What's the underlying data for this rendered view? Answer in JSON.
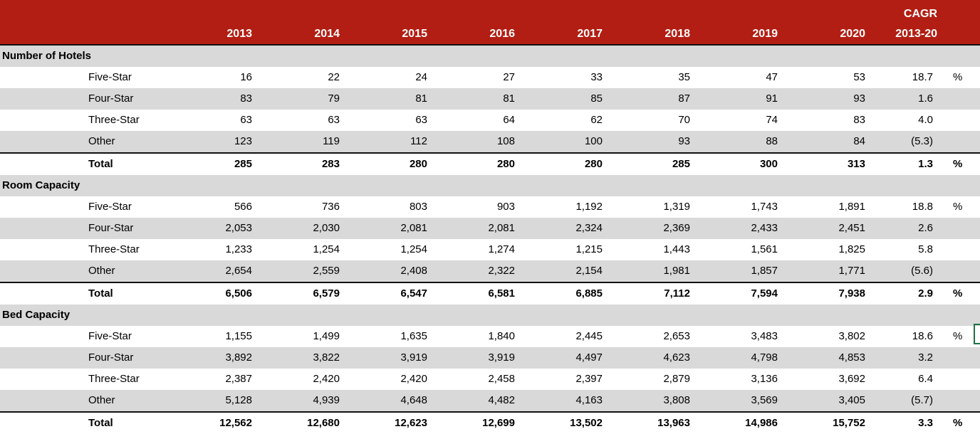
{
  "header": {
    "cagr_label": "CAGR",
    "cagr_sublabel": "2013-20",
    "years": [
      "2013",
      "2014",
      "2015",
      "2016",
      "2017",
      "2018",
      "2019",
      "2020"
    ]
  },
  "sections": [
    {
      "title": "Number of Hotels",
      "rows": [
        {
          "label": "Five-Star",
          "values": [
            "16",
            "22",
            "24",
            "27",
            "33",
            "35",
            "47",
            "53"
          ],
          "cagr": "18.7",
          "pct": "%"
        },
        {
          "label": "Four-Star",
          "values": [
            "83",
            "79",
            "81",
            "81",
            "85",
            "87",
            "91",
            "93"
          ],
          "cagr": "1.6",
          "pct": ""
        },
        {
          "label": "Three-Star",
          "values": [
            "63",
            "63",
            "63",
            "64",
            "62",
            "70",
            "74",
            "83"
          ],
          "cagr": "4.0",
          "pct": ""
        },
        {
          "label": "Other",
          "values": [
            "123",
            "119",
            "112",
            "108",
            "100",
            "93",
            "88",
            "84"
          ],
          "cagr": "(5.3)",
          "pct": ""
        },
        {
          "label": "Total",
          "values": [
            "285",
            "283",
            "280",
            "280",
            "280",
            "285",
            "300",
            "313"
          ],
          "cagr": "1.3",
          "pct": "%"
        }
      ]
    },
    {
      "title": "Room Capacity",
      "rows": [
        {
          "label": "Five-Star",
          "values": [
            "566",
            "736",
            "803",
            "903",
            "1,192",
            "1,319",
            "1,743",
            "1,891"
          ],
          "cagr": "18.8",
          "pct": "%"
        },
        {
          "label": "Four-Star",
          "values": [
            "2,053",
            "2,030",
            "2,081",
            "2,081",
            "2,324",
            "2,369",
            "2,433",
            "2,451"
          ],
          "cagr": "2.6",
          "pct": ""
        },
        {
          "label": "Three-Star",
          "values": [
            "1,233",
            "1,254",
            "1,254",
            "1,274",
            "1,215",
            "1,443",
            "1,561",
            "1,825"
          ],
          "cagr": "5.8",
          "pct": ""
        },
        {
          "label": "Other",
          "values": [
            "2,654",
            "2,559",
            "2,408",
            "2,322",
            "2,154",
            "1,981",
            "1,857",
            "1,771"
          ],
          "cagr": "(5.6)",
          "pct": ""
        },
        {
          "label": "Total",
          "values": [
            "6,506",
            "6,579",
            "6,547",
            "6,581",
            "6,885",
            "7,112",
            "7,594",
            "7,938"
          ],
          "cagr": "2.9",
          "pct": "%"
        }
      ]
    },
    {
      "title": "Bed Capacity",
      "rows": [
        {
          "label": "Five-Star",
          "values": [
            "1,155",
            "1,499",
            "1,635",
            "1,840",
            "2,445",
            "2,653",
            "3,483",
            "3,802"
          ],
          "cagr": "18.6",
          "pct": "%"
        },
        {
          "label": "Four-Star",
          "values": [
            "3,892",
            "3,822",
            "3,919",
            "3,919",
            "4,497",
            "4,623",
            "4,798",
            "4,853"
          ],
          "cagr": "3.2",
          "pct": ""
        },
        {
          "label": "Three-Star",
          "values": [
            "2,387",
            "2,420",
            "2,420",
            "2,458",
            "2,397",
            "2,879",
            "3,136",
            "3,692"
          ],
          "cagr": "6.4",
          "pct": ""
        },
        {
          "label": "Other",
          "values": [
            "5,128",
            "4,939",
            "4,648",
            "4,482",
            "4,163",
            "3,808",
            "3,569",
            "3,405"
          ],
          "cagr": "(5.7)",
          "pct": ""
        },
        {
          "label": "Total",
          "values": [
            "12,562",
            "12,680",
            "12,623",
            "12,699",
            "13,502",
            "13,963",
            "14,986",
            "15,752"
          ],
          "cagr": "3.3",
          "pct": "%"
        }
      ]
    }
  ],
  "colors": {
    "header_bg": "#B21E13",
    "band_bg": "#D9D9D9",
    "row_bg": "#FFFFFF",
    "header_text": "#FFFFFF",
    "body_text": "#000000",
    "selection_green": "#1E7145"
  }
}
